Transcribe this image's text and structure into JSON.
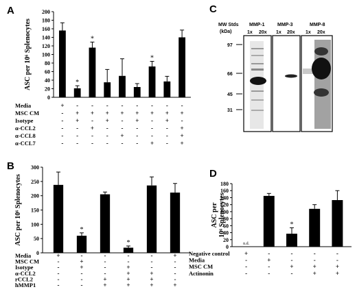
{
  "panels": {
    "A": {
      "letter": "A"
    },
    "B": {
      "letter": "B"
    },
    "C": {
      "letter": "C"
    },
    "D": {
      "letter": "D"
    }
  },
  "chart_data": [
    {
      "panel": "A",
      "type": "bar",
      "ylabel": "ASC per 10⁶ Splenocytes",
      "ylim": [
        0,
        200
      ],
      "yticks": [
        0,
        20,
        40,
        60,
        80,
        100,
        120,
        140,
        160,
        180,
        200
      ],
      "values": [
        156,
        21,
        116,
        35,
        50,
        24,
        72,
        37,
        140
      ],
      "errors": [
        18,
        6,
        13,
        30,
        40,
        8,
        12,
        12,
        17
      ],
      "significant": [
        false,
        true,
        true,
        false,
        false,
        false,
        true,
        false,
        false
      ],
      "significance_marker": "*",
      "conditions": [
        {
          "label": "Media",
          "marks": [
            "+",
            "-",
            "-",
            "-",
            "-",
            "-",
            "-",
            "-",
            "-"
          ]
        },
        {
          "label": "MSC CM",
          "marks": [
            "-",
            "+",
            "+",
            "+",
            "+",
            "+",
            "+",
            "+",
            "+"
          ]
        },
        {
          "label": "Isotype",
          "marks": [
            "-",
            "+",
            "-",
            "+",
            "-",
            "+",
            "-",
            "+",
            "-"
          ]
        },
        {
          "label": "α-CCL2",
          "marks": [
            "-",
            "-",
            "+",
            "-",
            "-",
            "-",
            "-",
            "-",
            "+"
          ]
        },
        {
          "label": "α-CCL8",
          "marks": [
            "-",
            "-",
            "-",
            "-",
            "+",
            "-",
            "-",
            "-",
            "+"
          ]
        },
        {
          "label": "α-CCL7",
          "marks": [
            "-",
            "-",
            "-",
            "-",
            "-",
            "-",
            "+",
            "-",
            "+"
          ]
        }
      ]
    },
    {
      "panel": "B",
      "type": "bar",
      "ylabel": "ASC per 10⁶ Splenocytes",
      "ylim": [
        0,
        300
      ],
      "yticks": [
        0,
        50,
        100,
        150,
        200,
        250,
        300
      ],
      "values": [
        238,
        60,
        205,
        18,
        236,
        211
      ],
      "errors": [
        45,
        10,
        8,
        6,
        30,
        32
      ],
      "significant": [
        false,
        true,
        false,
        true,
        false,
        false
      ],
      "significance_marker": "*",
      "conditions": [
        {
          "label": "Media",
          "marks": [
            "+",
            "-",
            "-",
            "-",
            "-",
            "+"
          ]
        },
        {
          "label": "MSC CM",
          "marks": [
            "-",
            "+",
            "-",
            "-",
            "-",
            "-"
          ]
        },
        {
          "label": "Isotype",
          "marks": [
            "-",
            "+",
            "-",
            "+",
            "-",
            "-"
          ]
        },
        {
          "label": "α-CCL2",
          "marks": [
            "-",
            "-",
            "-",
            "+",
            "+",
            "-"
          ]
        },
        {
          "label": "rCCL2",
          "marks": [
            "-",
            "-",
            "+",
            "+",
            "+",
            "-"
          ]
        },
        {
          "label": "hMMP1",
          "marks": [
            "-",
            "-",
            "+",
            "+",
            "+",
            "+"
          ]
        }
      ]
    },
    {
      "panel": "D",
      "type": "bar",
      "ylabel_line1": "ASC per",
      "ylabel_line2": "10⁶ Splenocytes",
      "ylim": [
        0,
        180
      ],
      "yticks": [
        0,
        20,
        40,
        60,
        80,
        100,
        120,
        140,
        160,
        180
      ],
      "values": [
        0,
        145,
        37,
        108,
        133
      ],
      "errors": [
        0,
        7,
        17,
        12,
        27
      ],
      "significant": [
        false,
        false,
        true,
        false,
        false
      ],
      "significance_marker": "*",
      "value_annotations": [
        "n.d.",
        "",
        "",
        "",
        ""
      ],
      "conditions": [
        {
          "label": "Negative control",
          "marks": [
            "+",
            "-",
            "-",
            "-",
            "-"
          ]
        },
        {
          "label": "Media",
          "marks": [
            "-",
            "+",
            "-",
            "-",
            "-"
          ]
        },
        {
          "label": "MSC CM",
          "marks": [
            "-",
            "-",
            "+",
            "+",
            "+"
          ]
        },
        {
          "label": "Actinonin",
          "marks": [
            "-",
            "-",
            "-",
            "+",
            "+"
          ]
        }
      ]
    }
  ],
  "blot": {
    "axis_title_line1": "MW Stds",
    "axis_title_line2": "(kDa)",
    "markers": [
      "97",
      "66",
      "45",
      "31"
    ],
    "lanes": [
      {
        "name": "MMP-1",
        "dilutions": [
          "1x",
          "20x"
        ]
      },
      {
        "name": "MMP-3",
        "dilutions": [
          "1x",
          "20x"
        ]
      },
      {
        "name": "MMP-8",
        "dilutions": [
          "1x",
          "20x"
        ]
      }
    ]
  }
}
